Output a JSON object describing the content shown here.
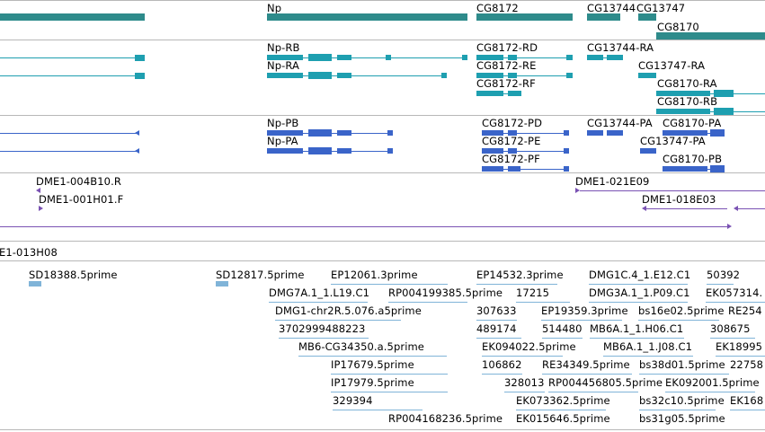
{
  "colors": {
    "gene": "#2e8b8b",
    "transcript_cdna": "#1e9fb0",
    "transcript_protein": "#3a64c9",
    "clone": "#7a52b3",
    "est": "#80b4d8",
    "separator": "#b8b8b8"
  },
  "tracks": {
    "genes": {
      "labels": [
        "Np",
        "CG8172",
        "CG13744",
        "CG13747",
        "CG8170"
      ]
    },
    "transcripts": {
      "labels": [
        "Np-RB",
        "Np-RA",
        "CG8172-RD",
        "CG8172-RE",
        "CG8172-RF",
        "CG13744-RA",
        "CG13747-RA",
        "CG8170-RA",
        "CG8170-RB"
      ]
    },
    "proteins": {
      "labels": [
        "Np-PB",
        "Np-PA",
        "CG8172-PD",
        "CG8172-PE",
        "CG8172-PF",
        "CG13744-PA",
        "CG8170-PA",
        "CG13747-PA",
        "CG8170-PB"
      ]
    },
    "clones": {
      "labels": [
        "DME1-004B10.R",
        "DME1-001H01.F",
        "DME1-021E09",
        "DME1-018E03"
      ]
    },
    "clone_row": {
      "label": "E1-013H08"
    },
    "ests": {
      "labels": [
        "SD18388.5prime",
        "SD12817.5prime",
        "EP12061.3prime",
        "EP14532.3prime",
        "DMG1C.4_1.E12.C1",
        "50392",
        "DMG7A.1_1.L19.C1",
        "RP004199385.5prime",
        "17215",
        "DMG3A.1_1.P09.C1",
        "EK057314.",
        "DMG1-chr2R.5.076.a5prime",
        "307633",
        "EP19359.3prime",
        "bs16e02.5prime",
        "RE254",
        "3702999488223",
        "489174",
        "514480",
        "MB6A.1_1.H06.C1",
        "308675",
        "MB6-CG34350.a.5prime",
        "EK094022.5prime",
        "MB6A.1_1.J08.C1",
        "EK18995",
        "IP17679.5prime",
        "106862",
        "RE34349.5prime",
        "bs38d01.5prime",
        "22758",
        "IP17979.5prime",
        "328013",
        "RP004456805.5prime",
        "EK092001.5prime",
        "329394",
        "EK073362.5prime",
        "bs32c10.5prime",
        "EK168",
        "RP004168236.5prime",
        "EK015646.5prime",
        "bs31g05.5prime"
      ]
    }
  }
}
